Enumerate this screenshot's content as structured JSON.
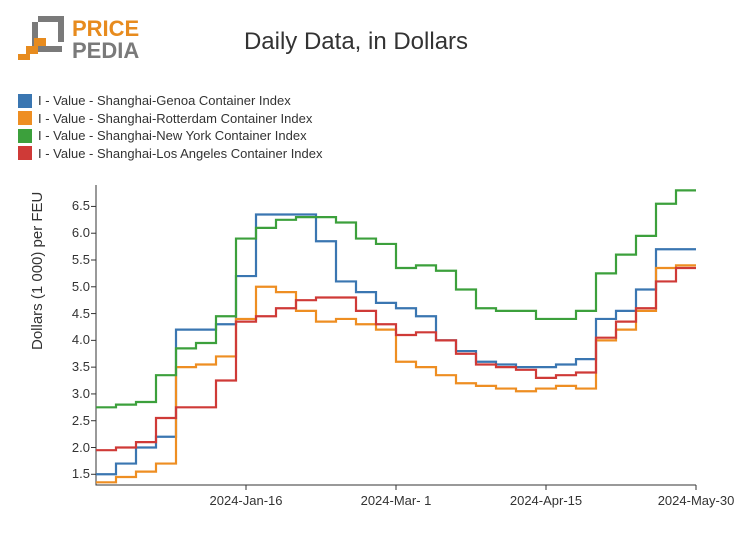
{
  "logo": {
    "line1": "PRICE",
    "line2": "PEDIA",
    "orange": "#e78b1e",
    "gray": "#7a7a7a"
  },
  "chart": {
    "type": "line",
    "title": "Daily Data, in Dollars",
    "title_fontsize": 24,
    "ylabel": "Dollars (1 000) per FEU",
    "label_fontsize": 15,
    "tick_fontsize": 13,
    "background_color": "#ffffff",
    "axis_color": "#333333",
    "text_color": "#333333",
    "y_ticks": [
      1.5,
      2.0,
      2.5,
      3.0,
      3.5,
      4.0,
      4.5,
      5.0,
      5.5,
      6.0,
      6.5
    ],
    "y_tick_labels": [
      "1.5",
      "2.0",
      "2.5",
      "3.0",
      "3.5",
      "4.0",
      "4.5",
      "5.0",
      "5.5",
      "6.0",
      "6.5"
    ],
    "ylim": [
      1.3,
      6.9
    ],
    "x_ticks": [
      45,
      90,
      135,
      180
    ],
    "x_tick_labels": [
      "2024-Jan-16",
      "2024-Mar- 1",
      "2024-Apr-15",
      "2024-May-30"
    ],
    "xlim": [
      0,
      180
    ],
    "line_width": 2.2,
    "step_mode": "hv",
    "legend": {
      "position": "top-left",
      "swatch_size": 14,
      "fontsize": 13
    },
    "series": [
      {
        "name": "I - Value - Shanghai-Genoa Container Index",
        "color": "#3a76b1",
        "data": [
          [
            0,
            1.5
          ],
          [
            6,
            1.7
          ],
          [
            12,
            2.0
          ],
          [
            18,
            2.2
          ],
          [
            24,
            4.2
          ],
          [
            30,
            4.2
          ],
          [
            36,
            4.3
          ],
          [
            42,
            5.2
          ],
          [
            48,
            6.35
          ],
          [
            54,
            6.35
          ],
          [
            60,
            6.35
          ],
          [
            66,
            5.85
          ],
          [
            72,
            5.1
          ],
          [
            78,
            4.9
          ],
          [
            84,
            4.7
          ],
          [
            90,
            4.6
          ],
          [
            96,
            4.45
          ],
          [
            102,
            4.0
          ],
          [
            108,
            3.8
          ],
          [
            114,
            3.6
          ],
          [
            120,
            3.55
          ],
          [
            126,
            3.5
          ],
          [
            132,
            3.5
          ],
          [
            138,
            3.55
          ],
          [
            144,
            3.65
          ],
          [
            150,
            4.4
          ],
          [
            156,
            4.55
          ],
          [
            162,
            4.95
          ],
          [
            168,
            5.7
          ],
          [
            174,
            5.7
          ],
          [
            180,
            5.7
          ]
        ]
      },
      {
        "name": "I - Value - Shanghai-Rotterdam Container Index",
        "color": "#ee8e22",
        "data": [
          [
            0,
            1.35
          ],
          [
            6,
            1.45
          ],
          [
            12,
            1.55
          ],
          [
            18,
            1.7
          ],
          [
            24,
            3.5
          ],
          [
            30,
            3.55
          ],
          [
            36,
            3.7
          ],
          [
            42,
            4.4
          ],
          [
            48,
            5.0
          ],
          [
            54,
            4.9
          ],
          [
            60,
            4.55
          ],
          [
            66,
            4.35
          ],
          [
            72,
            4.4
          ],
          [
            78,
            4.3
          ],
          [
            84,
            4.2
          ],
          [
            90,
            3.6
          ],
          [
            96,
            3.5
          ],
          [
            102,
            3.35
          ],
          [
            108,
            3.2
          ],
          [
            114,
            3.15
          ],
          [
            120,
            3.1
          ],
          [
            126,
            3.05
          ],
          [
            132,
            3.1
          ],
          [
            138,
            3.15
          ],
          [
            144,
            3.1
          ],
          [
            150,
            4.0
          ],
          [
            156,
            4.2
          ],
          [
            162,
            4.55
          ],
          [
            168,
            5.35
          ],
          [
            174,
            5.4
          ],
          [
            180,
            5.4
          ]
        ]
      },
      {
        "name": "I - Value - Shanghai-New York Container Index",
        "color": "#3ca03c",
        "data": [
          [
            0,
            2.75
          ],
          [
            6,
            2.8
          ],
          [
            12,
            2.85
          ],
          [
            18,
            3.35
          ],
          [
            24,
            3.85
          ],
          [
            30,
            3.95
          ],
          [
            36,
            4.45
          ],
          [
            42,
            5.9
          ],
          [
            48,
            6.1
          ],
          [
            54,
            6.25
          ],
          [
            60,
            6.3
          ],
          [
            66,
            6.3
          ],
          [
            72,
            6.2
          ],
          [
            78,
            5.9
          ],
          [
            84,
            5.8
          ],
          [
            90,
            5.35
          ],
          [
            96,
            5.4
          ],
          [
            102,
            5.3
          ],
          [
            108,
            4.95
          ],
          [
            114,
            4.6
          ],
          [
            120,
            4.55
          ],
          [
            126,
            4.55
          ],
          [
            132,
            4.4
          ],
          [
            138,
            4.4
          ],
          [
            144,
            4.55
          ],
          [
            150,
            5.25
          ],
          [
            156,
            5.6
          ],
          [
            162,
            5.95
          ],
          [
            168,
            6.55
          ],
          [
            174,
            6.8
          ],
          [
            180,
            6.8
          ]
        ]
      },
      {
        "name": "I - Value - Shanghai-Los Angeles Container Index",
        "color": "#cf3a37",
        "data": [
          [
            0,
            1.95
          ],
          [
            6,
            2.0
          ],
          [
            12,
            2.1
          ],
          [
            18,
            2.55
          ],
          [
            24,
            2.75
          ],
          [
            30,
            2.75
          ],
          [
            36,
            3.25
          ],
          [
            42,
            4.35
          ],
          [
            48,
            4.45
          ],
          [
            54,
            4.6
          ],
          [
            60,
            4.75
          ],
          [
            66,
            4.8
          ],
          [
            72,
            4.8
          ],
          [
            78,
            4.55
          ],
          [
            84,
            4.3
          ],
          [
            90,
            4.1
          ],
          [
            96,
            4.15
          ],
          [
            102,
            4.0
          ],
          [
            108,
            3.75
          ],
          [
            114,
            3.55
          ],
          [
            120,
            3.5
          ],
          [
            126,
            3.45
          ],
          [
            132,
            3.3
          ],
          [
            138,
            3.35
          ],
          [
            144,
            3.4
          ],
          [
            150,
            4.05
          ],
          [
            156,
            4.35
          ],
          [
            162,
            4.6
          ],
          [
            168,
            5.1
          ],
          [
            174,
            5.35
          ],
          [
            180,
            5.35
          ]
        ]
      }
    ]
  }
}
